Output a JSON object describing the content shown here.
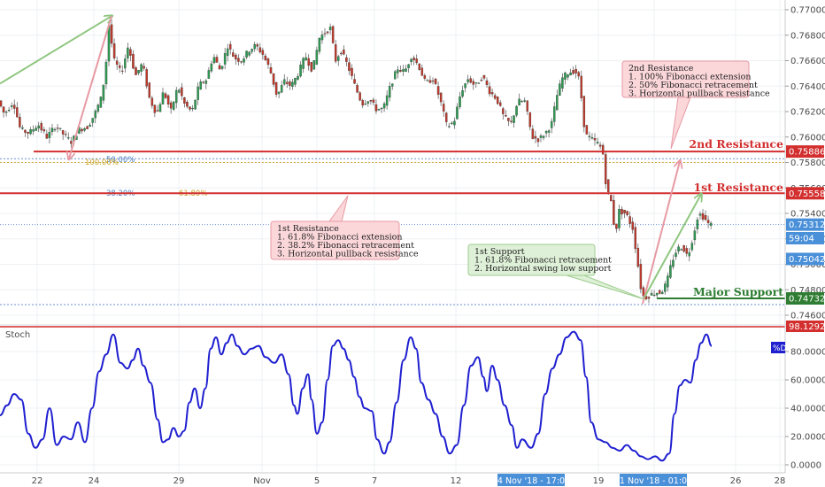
{
  "chart_data": {
    "type": "candlestick",
    "price_axis": {
      "range": [
        0.7452,
        0.7712
      ],
      "ticks": [
        "0.77000",
        "0.76800",
        "0.76600",
        "0.76400",
        "0.76200",
        "0.76000",
        "0.75800",
        "0.75600",
        "0.75400",
        "0.75200",
        "0.75000",
        "0.74800",
        "0.74600"
      ],
      "tick_values": [
        0.77,
        0.768,
        0.766,
        0.764,
        0.762,
        0.76,
        0.758,
        0.756,
        0.754,
        0.752,
        0.75,
        0.748,
        0.746
      ]
    },
    "time_axis": {
      "labels": [
        "22",
        "24",
        "29",
        "Nov",
        "5",
        "7",
        "12",
        "19",
        "21",
        "26",
        "28"
      ],
      "highlights": [
        "14 Nov '18 - 17:00",
        "21 Nov '18 - 01:00"
      ]
    },
    "price_levels": [
      {
        "name": "2nd Resistance",
        "label": "2nd Resistance",
        "value": 0.75886,
        "tag": "0.75886",
        "color": "#d32f2f"
      },
      {
        "name": "1st Resistance",
        "label": "1st Resistance",
        "value": 0.75558,
        "tag": "0.75558",
        "color": "#d32f2f"
      },
      {
        "name": "Major Support",
        "label": "Major Support",
        "value": 0.74732,
        "tag": "0.74732",
        "color": "#2e7d32"
      }
    ],
    "price_tags": [
      {
        "value": 0.75312,
        "tag": "0.75312",
        "color": "#4a90d9"
      },
      {
        "tag": "59:04",
        "color": "#4a90d9"
      },
      {
        "value": 0.75042,
        "tag": "0.75042",
        "color": "#4a90d9"
      }
    ],
    "fib_labels": [
      {
        "text": "50.00%",
        "color": "#4a7fc1"
      },
      {
        "text": "100.00%",
        "color": "#c9a227"
      },
      {
        "text": "38.20%",
        "color": "#4a7fc1"
      },
      {
        "text": "61.80%",
        "color": "#c9a227"
      }
    ],
    "callouts": {
      "second_resistance": {
        "lines": [
          "2nd Resistance",
          "1. 100% Fibonacci extension",
          "2. 50% Fibonacci retracement",
          "3. Horizontal pullback resistance"
        ]
      },
      "first_resistance": {
        "lines": [
          "1st Resistance",
          "1. 61.8% Fibonacci extension",
          "2. 38.2% Fibonacci retracement",
          "3. Horizontal pullback resistance"
        ]
      },
      "first_support": {
        "lines": [
          "1st Support",
          "1. 61.8% Fibonacci retracement",
          "2. Horizontal swing low support"
        ]
      }
    },
    "price_path": [
      [
        0,
        0.763
      ],
      [
        8,
        0.7618
      ],
      [
        18,
        0.7628
      ],
      [
        26,
        0.7606
      ],
      [
        36,
        0.7603
      ],
      [
        46,
        0.761
      ],
      [
        56,
        0.76
      ],
      [
        66,
        0.7609
      ],
      [
        76,
        0.7601
      ],
      [
        84,
        0.7596
      ],
      [
        92,
        0.7606
      ],
      [
        102,
        0.7608
      ],
      [
        110,
        0.7618
      ],
      [
        117,
        0.763
      ],
      [
        122,
        0.765
      ],
      [
        126,
        0.7688
      ],
      [
        132,
        0.766
      ],
      [
        140,
        0.765
      ],
      [
        148,
        0.7672
      ],
      [
        156,
        0.7648
      ],
      [
        164,
        0.7658
      ],
      [
        172,
        0.763
      ],
      [
        180,
        0.7618
      ],
      [
        188,
        0.7636
      ],
      [
        196,
        0.762
      ],
      [
        204,
        0.764
      ],
      [
        212,
        0.7625
      ],
      [
        220,
        0.762
      ],
      [
        228,
        0.7641
      ],
      [
        236,
        0.7645
      ],
      [
        244,
        0.7664
      ],
      [
        252,
        0.7652
      ],
      [
        260,
        0.7672
      ],
      [
        268,
        0.7662
      ],
      [
        276,
        0.766
      ],
      [
        284,
        0.7668
      ],
      [
        292,
        0.7672
      ],
      [
        300,
        0.7665
      ],
      [
        308,
        0.7653
      ],
      [
        316,
        0.7632
      ],
      [
        324,
        0.7644
      ],
      [
        332,
        0.764
      ],
      [
        340,
        0.765
      ],
      [
        348,
        0.7664
      ],
      [
        356,
        0.7652
      ],
      [
        364,
        0.7678
      ],
      [
        370,
        0.7682
      ],
      [
        376,
        0.7686
      ],
      [
        382,
        0.766
      ],
      [
        388,
        0.7668
      ],
      [
        396,
        0.7656
      ],
      [
        404,
        0.764
      ],
      [
        412,
        0.7626
      ],
      [
        420,
        0.763
      ],
      [
        428,
        0.7622
      ],
      [
        436,
        0.7622
      ],
      [
        444,
        0.764
      ],
      [
        452,
        0.7654
      ],
      [
        460,
        0.7651
      ],
      [
        468,
        0.7664
      ],
      [
        476,
        0.7656
      ],
      [
        484,
        0.7642
      ],
      [
        492,
        0.7646
      ],
      [
        500,
        0.763
      ],
      [
        508,
        0.7608
      ],
      [
        516,
        0.7612
      ],
      [
        524,
        0.7636
      ],
      [
        532,
        0.7646
      ],
      [
        540,
        0.764
      ],
      [
        548,
        0.7648
      ],
      [
        556,
        0.7636
      ],
      [
        564,
        0.763
      ],
      [
        572,
        0.7616
      ],
      [
        580,
        0.761
      ],
      [
        588,
        0.7628
      ],
      [
        596,
        0.7628
      ],
      [
        604,
        0.76
      ],
      [
        612,
        0.7598
      ],
      [
        620,
        0.7604
      ],
      [
        626,
        0.761
      ],
      [
        632,
        0.7632
      ],
      [
        638,
        0.7646
      ],
      [
        644,
        0.765
      ],
      [
        650,
        0.7652
      ],
      [
        656,
        0.765
      ],
      [
        660,
        0.763
      ],
      [
        664,
        0.7602
      ],
      [
        672,
        0.7598
      ],
      [
        680,
        0.7594
      ],
      [
        684,
        0.7588
      ],
      [
        688,
        0.756
      ],
      [
        694,
        0.7548
      ],
      [
        698,
        0.7522
      ],
      [
        702,
        0.7542
      ],
      [
        710,
        0.754
      ],
      [
        718,
        0.7528
      ],
      [
        724,
        0.7498
      ],
      [
        728,
        0.7476
      ],
      [
        732,
        0.7474
      ],
      [
        738,
        0.7476
      ],
      [
        744,
        0.7478
      ],
      [
        750,
        0.7478
      ],
      [
        756,
        0.7485
      ],
      [
        762,
        0.7502
      ],
      [
        768,
        0.7512
      ],
      [
        774,
        0.7514
      ],
      [
        780,
        0.7506
      ],
      [
        786,
        0.7522
      ],
      [
        792,
        0.754
      ],
      [
        798,
        0.7537
      ],
      [
        804,
        0.7531
      ]
    ],
    "arrows": [
      {
        "from": [
          0,
          0.7642
        ],
        "to": [
          126,
          0.7695
        ],
        "color": "#8fc67f"
      },
      {
        "from": [
          126,
          0.7695
        ],
        "to": [
          78,
          0.7583
        ],
        "color": "#e79aa4"
      },
      {
        "from": [
          726,
          0.7469
        ],
        "to": [
          768,
          0.7581
        ],
        "color": "#e79aa4"
      },
      {
        "from": [
          728,
          0.7474
        ],
        "to": [
          792,
          0.7555
        ],
        "color": "#8fc67f"
      }
    ],
    "stochastic": {
      "name": "Stoch",
      "legend": "%D",
      "overbought_tag": "98.1292",
      "range": [
        -1,
        100
      ],
      "ticks": [
        "80.0000",
        "60.0000",
        "40.0000",
        "20.0000",
        "0.0000"
      ],
      "tick_values": [
        80,
        60,
        40,
        20,
        0
      ],
      "color": "#1f1fd0",
      "values": [
        [
          0,
          35
        ],
        [
          8,
          42
        ],
        [
          16,
          50
        ],
        [
          24,
          46
        ],
        [
          32,
          22
        ],
        [
          40,
          12
        ],
        [
          48,
          18
        ],
        [
          56,
          40
        ],
        [
          64,
          14
        ],
        [
          72,
          20
        ],
        [
          80,
          18
        ],
        [
          88,
          30
        ],
        [
          96,
          16
        ],
        [
          104,
          40
        ],
        [
          112,
          66
        ],
        [
          120,
          78
        ],
        [
          128,
          92
        ],
        [
          136,
          72
        ],
        [
          144,
          68
        ],
        [
          150,
          74
        ],
        [
          156,
          82
        ],
        [
          162,
          70
        ],
        [
          170,
          58
        ],
        [
          178,
          32
        ],
        [
          184,
          16
        ],
        [
          190,
          18
        ],
        [
          196,
          26
        ],
        [
          202,
          20
        ],
        [
          208,
          24
        ],
        [
          214,
          44
        ],
        [
          220,
          54
        ],
        [
          226,
          40
        ],
        [
          232,
          54
        ],
        [
          238,
          82
        ],
        [
          244,
          90
        ],
        [
          250,
          78
        ],
        [
          256,
          86
        ],
        [
          262,
          92
        ],
        [
          268,
          84
        ],
        [
          276,
          78
        ],
        [
          284,
          82
        ],
        [
          292,
          84
        ],
        [
          300,
          76
        ],
        [
          310,
          72
        ],
        [
          318,
          78
        ],
        [
          326,
          64
        ],
        [
          332,
          42
        ],
        [
          336,
          36
        ],
        [
          342,
          54
        ],
        [
          348,
          64
        ],
        [
          352,
          46
        ],
        [
          358,
          22
        ],
        [
          364,
          30
        ],
        [
          370,
          60
        ],
        [
          376,
          84
        ],
        [
          382,
          88
        ],
        [
          388,
          82
        ],
        [
          394,
          74
        ],
        [
          400,
          62
        ],
        [
          406,
          48
        ],
        [
          412,
          40
        ],
        [
          420,
          38
        ],
        [
          426,
          18
        ],
        [
          434,
          8
        ],
        [
          440,
          16
        ],
        [
          448,
          44
        ],
        [
          456,
          74
        ],
        [
          464,
          90
        ],
        [
          470,
          82
        ],
        [
          476,
          58
        ],
        [
          484,
          46
        ],
        [
          492,
          36
        ],
        [
          500,
          20
        ],
        [
          508,
          8
        ],
        [
          516,
          14
        ],
        [
          524,
          42
        ],
        [
          532,
          70
        ],
        [
          540,
          76
        ],
        [
          546,
          62
        ],
        [
          550,
          52
        ],
        [
          556,
          70
        ],
        [
          562,
          60
        ],
        [
          570,
          42
        ],
        [
          578,
          28
        ],
        [
          584,
          12
        ],
        [
          590,
          18
        ],
        [
          600,
          12
        ],
        [
          608,
          22
        ],
        [
          616,
          50
        ],
        [
          624,
          68
        ],
        [
          632,
          78
        ],
        [
          640,
          90
        ],
        [
          648,
          94
        ],
        [
          656,
          88
        ],
        [
          662,
          62
        ],
        [
          668,
          30
        ],
        [
          676,
          18
        ],
        [
          684,
          16
        ],
        [
          692,
          12
        ],
        [
          700,
          10
        ],
        [
          708,
          14
        ],
        [
          716,
          10
        ],
        [
          724,
          6
        ],
        [
          732,
          4
        ],
        [
          740,
          6
        ],
        [
          748,
          3
        ],
        [
          756,
          8
        ],
        [
          762,
          36
        ],
        [
          768,
          56
        ],
        [
          774,
          60
        ],
        [
          780,
          58
        ],
        [
          786,
          74
        ],
        [
          792,
          86
        ],
        [
          798,
          92
        ],
        [
          804,
          84
        ]
      ]
    }
  }
}
